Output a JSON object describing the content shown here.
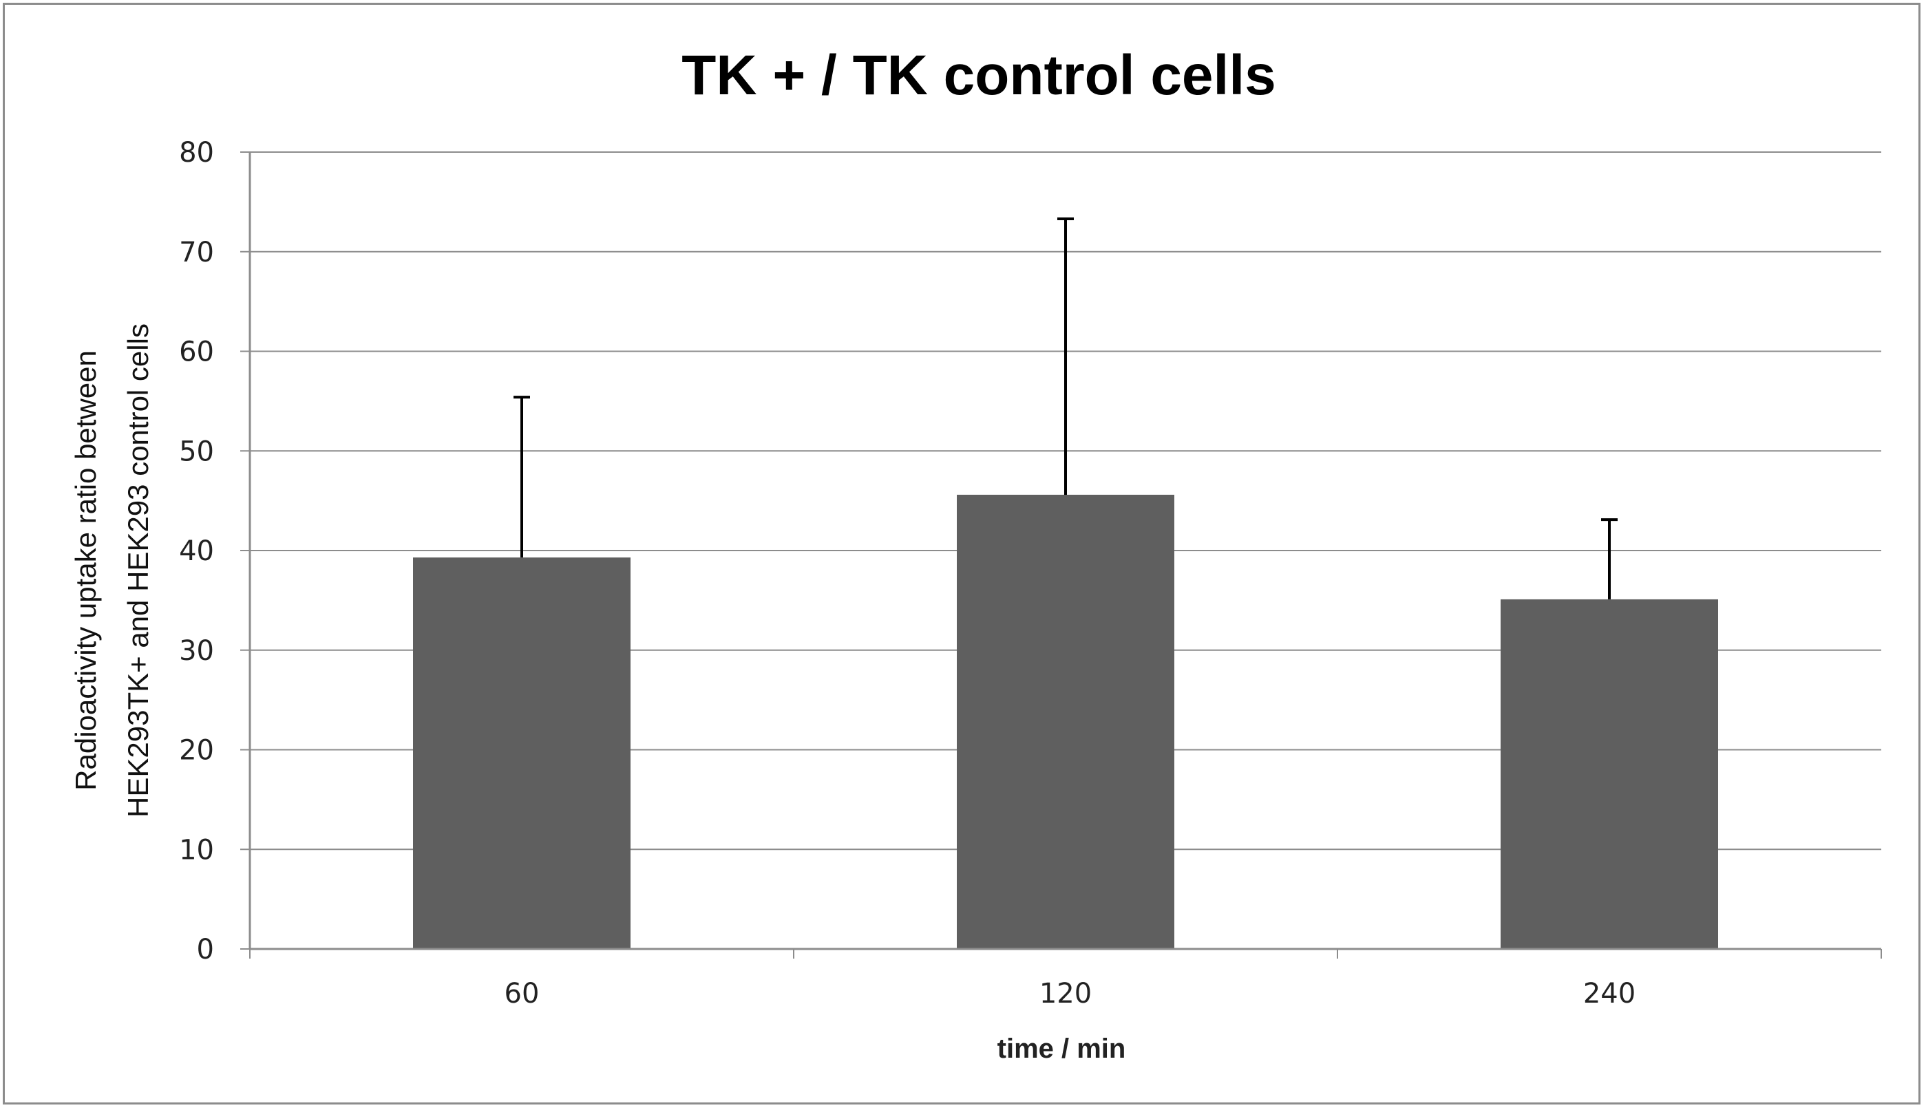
{
  "chart_data": {
    "type": "bar",
    "title": "TK + / TK control cells",
    "xlabel": "time / min",
    "ylabel": [
      "Radioactivity uptake ratio between",
      "HEK293TK+ and HEK293 control cells"
    ],
    "categories": [
      "60",
      "120",
      "240"
    ],
    "series": [
      {
        "name": "uptake ratio",
        "values": [
          39.3,
          45.6,
          35.1
        ],
        "error_upper": [
          16.1,
          27.7,
          8.0
        ]
      }
    ],
    "ylim": [
      0,
      80
    ],
    "yticks": [
      "0",
      "10",
      "20",
      "30",
      "40",
      "50",
      "60",
      "70",
      "80"
    ],
    "grid": true,
    "colors": {
      "bar": "#5f5f5f",
      "grid": "#8c8c8c",
      "axis": "#8c8c8c",
      "error": "#000000"
    }
  }
}
